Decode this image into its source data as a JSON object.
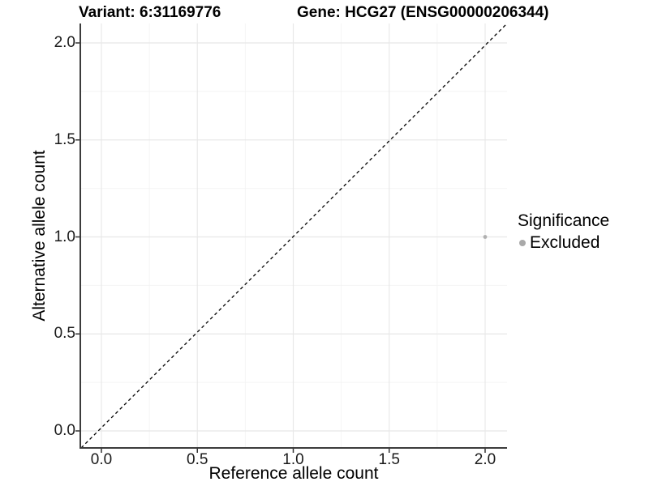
{
  "titles": {
    "left": "Variant: 6:31169776",
    "right": "Gene: HCG27 (ENSG00000206344)"
  },
  "chart_data": {
    "type": "scatter",
    "xlabel": "Reference allele count",
    "ylabel": "Alternative allele count",
    "xlim": [
      -0.105,
      2.105
    ],
    "ylim": [
      -0.105,
      2.105
    ],
    "x_ticks": [
      0.0,
      0.5,
      1.0,
      1.5,
      2.0
    ],
    "y_ticks": [
      0.0,
      0.5,
      1.0,
      1.5,
      2.0
    ],
    "x_tick_labels": [
      "0.0",
      "0.5",
      "1.0",
      "1.5",
      "2.0"
    ],
    "y_tick_labels": [
      "0.0",
      "0.5",
      "1.0",
      "1.5",
      "2.0"
    ],
    "minor_ticks": [
      0.25,
      0.75,
      1.25,
      1.75
    ],
    "grid": true,
    "points": [
      {
        "x": 2.0,
        "y": 1.0,
        "series": "Excluded"
      }
    ],
    "reference_line": {
      "type": "identity",
      "style": "dashed"
    },
    "legend": {
      "title": "Significance",
      "position": "right",
      "items": [
        {
          "label": "Excluded",
          "marker": "circle",
          "color": "#a9a9a9"
        }
      ]
    }
  },
  "colors": {
    "grid_major": "#e8e8e8",
    "grid_minor": "#f4f4f4",
    "axis_line": "#3c3c3c",
    "tick_mark": "#333333",
    "tick_text": "#1a1a1a",
    "point": "#b0b0b0",
    "reference_line": "#000000",
    "background": "#ffffff"
  }
}
